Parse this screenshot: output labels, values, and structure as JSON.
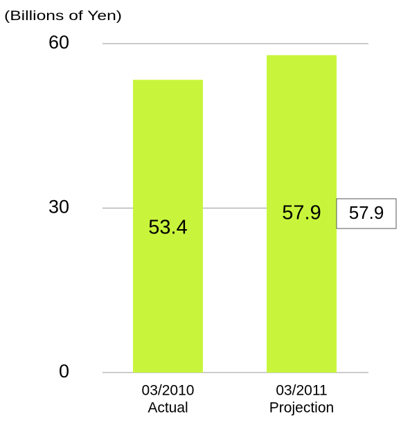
{
  "chart_data": {
    "type": "bar",
    "y_axis_label": "(Billions of Yen)",
    "categories": [
      [
        "03/2010",
        "Actual"
      ],
      [
        "03/2011",
        "Projection"
      ]
    ],
    "values": [
      53.4,
      57.9
    ],
    "color": "#c8f53c",
    "ylim": [
      0,
      60
    ],
    "yticks": [
      0,
      30,
      60
    ],
    "grid": true
  }
}
